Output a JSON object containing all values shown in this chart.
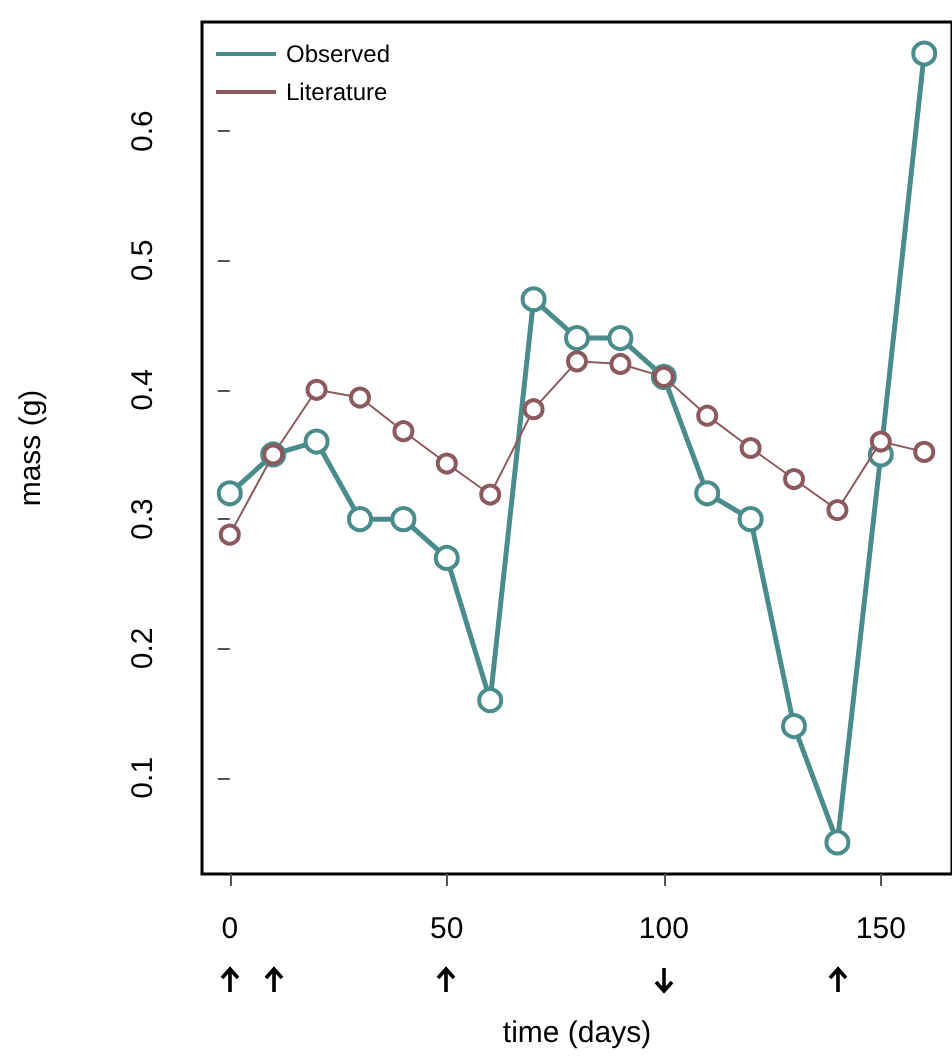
{
  "chart_data": {
    "type": "line",
    "xlabel": "time (days)",
    "ylabel": "mass (g)",
    "x": [
      0,
      10,
      20,
      30,
      40,
      50,
      60,
      70,
      80,
      90,
      100,
      110,
      120,
      130,
      140,
      150,
      160
    ],
    "series": [
      {
        "name": "Observed",
        "color": "#4a8c8c",
        "values": [
          0.32,
          0.35,
          0.36,
          0.3,
          0.3,
          0.27,
          0.16,
          0.47,
          0.44,
          0.44,
          0.41,
          0.32,
          0.3,
          0.14,
          0.05,
          0.35,
          0.66
        ]
      },
      {
        "name": "Literature",
        "color": "#8c5a5e",
        "values": [
          0.288,
          0.35,
          0.4,
          0.394,
          0.368,
          0.343,
          0.319,
          0.385,
          0.422,
          0.42,
          0.41,
          0.38,
          0.355,
          0.331,
          0.307,
          0.36,
          0.352
        ]
      }
    ],
    "xlim": [
      -6.4,
      166.4
    ],
    "xticks": [
      0,
      50,
      100,
      150
    ],
    "ylim": [
      0.0256,
      0.6844
    ],
    "yticks": [
      0.1,
      0.2,
      0.3,
      0.4,
      0.5,
      0.6
    ],
    "grid": false,
    "legend": "top left",
    "marker": "circle",
    "line_style": "solid"
  }
}
